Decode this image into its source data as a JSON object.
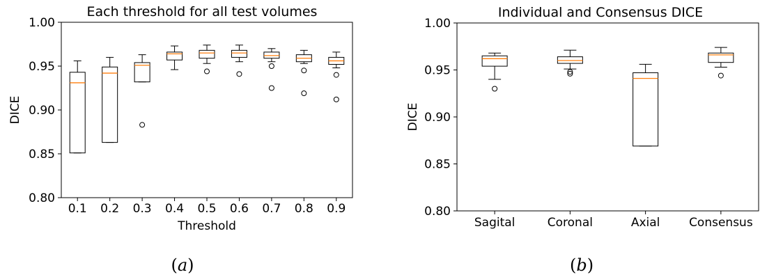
{
  "colors": {
    "median": "#ff7f0e",
    "box": "#000000",
    "background": "#ffffff"
  },
  "captions": [
    "(a)",
    "(b)"
  ],
  "chart_data": [
    {
      "type": "boxplot",
      "title": "Each threshold for all test volumes",
      "xlabel": "Threshold",
      "ylabel": "DICE",
      "ylim": [
        0.8,
        1.0
      ],
      "yticks": [
        "0.80",
        "0.85",
        "0.90",
        "0.95",
        "1.00"
      ],
      "categories": [
        "0.1",
        "0.2",
        "0.3",
        "0.4",
        "0.5",
        "0.6",
        "0.7",
        "0.8",
        "0.9"
      ],
      "boxes": [
        {
          "whisker_low": 0.851,
          "q1": 0.851,
          "median": 0.931,
          "q3": 0.943,
          "whisker_high": 0.956,
          "outliers": []
        },
        {
          "whisker_low": 0.863,
          "q1": 0.863,
          "median": 0.942,
          "q3": 0.949,
          "whisker_high": 0.96,
          "outliers": []
        },
        {
          "whisker_low": 0.932,
          "q1": 0.932,
          "median": 0.951,
          "q3": 0.954,
          "whisker_high": 0.963,
          "outliers": [
            0.883
          ]
        },
        {
          "whisker_low": 0.946,
          "q1": 0.957,
          "median": 0.964,
          "q3": 0.966,
          "whisker_high": 0.973,
          "outliers": []
        },
        {
          "whisker_low": 0.953,
          "q1": 0.959,
          "median": 0.965,
          "q3": 0.968,
          "whisker_high": 0.974,
          "outliers": [
            0.944
          ]
        },
        {
          "whisker_low": 0.955,
          "q1": 0.96,
          "median": 0.965,
          "q3": 0.968,
          "whisker_high": 0.974,
          "outliers": [
            0.941
          ]
        },
        {
          "whisker_low": 0.955,
          "q1": 0.959,
          "median": 0.962,
          "q3": 0.966,
          "whisker_high": 0.97,
          "outliers": [
            0.95,
            0.925
          ]
        },
        {
          "whisker_low": 0.953,
          "q1": 0.955,
          "median": 0.959,
          "q3": 0.963,
          "whisker_high": 0.968,
          "outliers": [
            0.945,
            0.919
          ]
        },
        {
          "whisker_low": 0.948,
          "q1": 0.952,
          "median": 0.956,
          "q3": 0.96,
          "whisker_high": 0.966,
          "outliers": [
            0.94,
            0.912
          ]
        }
      ],
      "grid": false
    },
    {
      "type": "boxplot",
      "title": "Individual and Consensus DICE",
      "xlabel": "",
      "ylabel": "DICE",
      "ylim": [
        0.8,
        1.0
      ],
      "yticks": [
        "0.80",
        "0.85",
        "0.90",
        "0.95",
        "1.00"
      ],
      "categories": [
        "Sagital",
        "Coronal",
        "Axial",
        "Consensus"
      ],
      "boxes": [
        {
          "whisker_low": 0.94,
          "q1": 0.954,
          "median": 0.962,
          "q3": 0.965,
          "whisker_high": 0.968,
          "outliers": [
            0.93
          ]
        },
        {
          "whisker_low": 0.951,
          "q1": 0.957,
          "median": 0.96,
          "q3": 0.964,
          "whisker_high": 0.971,
          "outliers": [
            0.948,
            0.946
          ]
        },
        {
          "whisker_low": 0.869,
          "q1": 0.869,
          "median": 0.941,
          "q3": 0.947,
          "whisker_high": 0.956,
          "outliers": []
        },
        {
          "whisker_low": 0.953,
          "q1": 0.958,
          "median": 0.966,
          "q3": 0.968,
          "whisker_high": 0.974,
          "outliers": [
            0.944
          ]
        }
      ],
      "grid": false
    }
  ]
}
